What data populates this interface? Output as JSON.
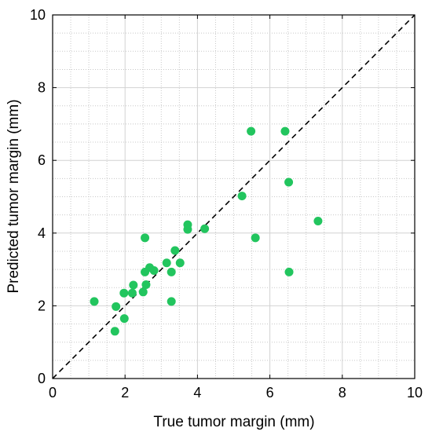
{
  "chart_data": {
    "type": "scatter",
    "xlabel": "True tumor margin (mm)",
    "ylabel": "Predicted tumor margin (mm)",
    "xlim": [
      0,
      10
    ],
    "ylim": [
      0,
      10
    ],
    "x_ticks": [
      0,
      2,
      4,
      6,
      8,
      10
    ],
    "y_ticks": [
      0,
      2,
      4,
      6,
      8,
      10
    ],
    "x_tick_labels": [
      "0",
      "2",
      "4",
      "6",
      "8",
      "10"
    ],
    "y_tick_labels": [
      "0",
      "2",
      "4",
      "6",
      "8",
      "10"
    ],
    "grid": true,
    "minor_grid": true,
    "minor_step": 0.5,
    "reference_line": {
      "style": "dashed",
      "from": [
        0,
        0
      ],
      "to": [
        10,
        10
      ]
    },
    "marker_color": "#22c55e",
    "series": [
      {
        "points": [
          [
            1.15,
            2.12
          ],
          [
            1.75,
            1.98
          ],
          [
            1.72,
            1.3
          ],
          [
            1.97,
            2.35
          ],
          [
            1.98,
            1.65
          ],
          [
            2.2,
            2.35
          ],
          [
            2.23,
            2.57
          ],
          [
            2.5,
            2.38
          ],
          [
            2.58,
            2.58
          ],
          [
            2.55,
            2.93
          ],
          [
            2.55,
            3.87
          ],
          [
            2.68,
            3.05
          ],
          [
            2.8,
            2.97
          ],
          [
            3.15,
            3.18
          ],
          [
            3.28,
            2.93
          ],
          [
            3.38,
            3.52
          ],
          [
            3.52,
            3.18
          ],
          [
            3.28,
            2.12
          ],
          [
            3.73,
            4.1
          ],
          [
            3.73,
            4.23
          ],
          [
            4.2,
            4.12
          ],
          [
            5.23,
            5.02
          ],
          [
            5.48,
            6.8
          ],
          [
            5.6,
            3.87
          ],
          [
            6.42,
            6.8
          ],
          [
            6.52,
            5.4
          ],
          [
            6.53,
            2.93
          ],
          [
            7.33,
            4.33
          ]
        ]
      }
    ]
  }
}
